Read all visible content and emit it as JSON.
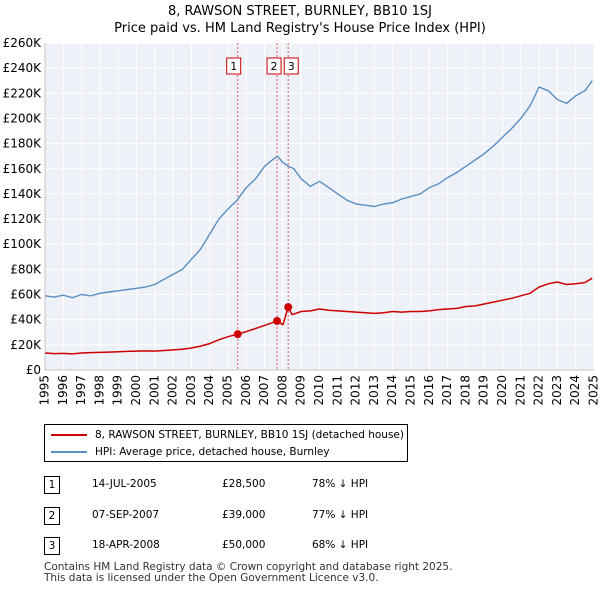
{
  "title_line1": "8, RAWSON STREET, BURNLEY, BB10 1SJ",
  "title_line2": "Price paid vs. HM Land Registry's House Price Index (HPI)",
  "chart_data": {
    "type": "line",
    "title": "8, RAWSON STREET, BURNLEY, BB10 1SJ - Price paid vs. HM Land Registry's House Price Index (HPI)",
    "xlabel": "",
    "ylabel": "",
    "xlim": [
      1995,
      2025
    ],
    "ylim": [
      0,
      260000
    ],
    "y_ticks": [
      0,
      20000,
      40000,
      60000,
      80000,
      100000,
      120000,
      140000,
      160000,
      180000,
      200000,
      220000,
      240000,
      260000
    ],
    "y_tick_labels": [
      "£0",
      "£20K",
      "£40K",
      "£60K",
      "£80K",
      "£100K",
      "£120K",
      "£140K",
      "£160K",
      "£180K",
      "£200K",
      "£220K",
      "£240K",
      "£260K"
    ],
    "x_ticks": [
      1995,
      1996,
      1997,
      1998,
      1999,
      2000,
      2001,
      2002,
      2003,
      2004,
      2005,
      2006,
      2007,
      2008,
      2009,
      2010,
      2011,
      2012,
      2013,
      2014,
      2015,
      2016,
      2017,
      2018,
      2019,
      2020,
      2021,
      2022,
      2023,
      2024,
      2025
    ],
    "grid": true,
    "series": [
      {
        "name": "8, RAWSON STREET, BURNLEY, BB10 1SJ (detached house)",
        "color": "#cc0000",
        "x": [
          1995.0,
          1995.5,
          1996.0,
          1996.5,
          1997.0,
          1997.5,
          1998.0,
          1998.5,
          1999.0,
          1999.5,
          2000.0,
          2000.5,
          2001.0,
          2001.5,
          2002.0,
          2002.5,
          2003.0,
          2003.5,
          2004.0,
          2004.5,
          2005.0,
          2005.53,
          2006.0,
          2006.5,
          2007.0,
          2007.5,
          2007.68,
          2008.0,
          2008.29,
          2008.5,
          2009.0,
          2009.5,
          2010.0,
          2010.5,
          2011.0,
          2011.5,
          2012.0,
          2012.5,
          2013.0,
          2013.5,
          2014.0,
          2014.5,
          2015.0,
          2015.5,
          2016.0,
          2016.5,
          2017.0,
          2017.5,
          2018.0,
          2018.5,
          2019.0,
          2019.5,
          2020.0,
          2020.5,
          2021.0,
          2021.5,
          2022.0,
          2022.5,
          2023.0,
          2023.5,
          2024.0,
          2024.5,
          2024.9
        ],
        "values": [
          13500,
          13000,
          13200,
          12800,
          13500,
          13800,
          14000,
          14200,
          14500,
          14800,
          15000,
          15200,
          15000,
          15500,
          16000,
          16500,
          17500,
          19000,
          21000,
          24000,
          26500,
          28500,
          30500,
          33000,
          35500,
          38000,
          39000,
          36000,
          50000,
          44000,
          46500,
          47000,
          48500,
          47500,
          47000,
          46500,
          46000,
          45500,
          45000,
          45500,
          46500,
          46000,
          46500,
          46500,
          47000,
          48000,
          48500,
          49000,
          50500,
          51000,
          52500,
          54000,
          55500,
          57000,
          59000,
          61000,
          66000,
          68500,
          70000,
          68000,
          68500,
          69500,
          73000
        ]
      },
      {
        "name": "HPI: Average price, detached house, Burnley",
        "color": "#5b8ec4",
        "x": [
          1995.0,
          1995.5,
          1996.0,
          1996.5,
          1997.0,
          1997.5,
          1998.0,
          1998.5,
          1999.0,
          1999.5,
          2000.0,
          2000.5,
          2001.0,
          2001.5,
          2002.0,
          2002.5,
          2003.0,
          2003.5,
          2004.0,
          2004.5,
          2005.0,
          2005.5,
          2006.0,
          2006.5,
          2007.0,
          2007.5,
          2007.7,
          2008.0,
          2008.3,
          2008.6,
          2009.0,
          2009.5,
          2010.0,
          2010.5,
          2011.0,
          2011.5,
          2012.0,
          2012.5,
          2013.0,
          2013.5,
          2014.0,
          2014.5,
          2015.0,
          2015.5,
          2016.0,
          2016.5,
          2017.0,
          2017.5,
          2018.0,
          2018.5,
          2019.0,
          2019.5,
          2020.0,
          2020.5,
          2021.0,
          2021.5,
          2022.0,
          2022.5,
          2023.0,
          2023.5,
          2024.0,
          2024.5,
          2024.9
        ],
        "values": [
          59000,
          58000,
          59500,
          57500,
          60000,
          59000,
          61000,
          62000,
          63000,
          64000,
          65000,
          66000,
          68000,
          72000,
          76000,
          80000,
          88000,
          96000,
          108000,
          120000,
          128000,
          135000,
          145000,
          152000,
          162000,
          168000,
          170000,
          165000,
          162000,
          160000,
          152000,
          146000,
          150000,
          145000,
          140000,
          135000,
          132000,
          131000,
          130000,
          132000,
          133000,
          136000,
          138000,
          140000,
          145000,
          148000,
          153000,
          157000,
          162000,
          167000,
          172000,
          178000,
          185000,
          192000,
          200000,
          210000,
          225000,
          222000,
          215000,
          212000,
          218000,
          222000,
          230000
        ]
      }
    ],
    "transactions": [
      {
        "id": "1",
        "x": 2005.53,
        "price": 28500
      },
      {
        "id": "2",
        "x": 2007.68,
        "price": 39000
      },
      {
        "id": "3",
        "x": 2008.29,
        "price": 50000
      }
    ]
  },
  "legend": {
    "property": "8, RAWSON STREET, BURNLEY, BB10 1SJ (detached house)",
    "hpi": "HPI: Average price, detached house, Burnley"
  },
  "table": [
    {
      "id": "1",
      "date": "14-JUL-2005",
      "price": "£28,500",
      "hpi": "78% ↓ HPI"
    },
    {
      "id": "2",
      "date": "07-SEP-2007",
      "price": "£39,000",
      "hpi": "77% ↓ HPI"
    },
    {
      "id": "3",
      "date": "18-APR-2008",
      "price": "£50,000",
      "hpi": "68% ↓ HPI"
    }
  ],
  "footer": {
    "line1": "Contains HM Land Registry data © Crown copyright and database right 2025.",
    "line2": "This data is licensed under the Open Government Licence v3.0."
  }
}
